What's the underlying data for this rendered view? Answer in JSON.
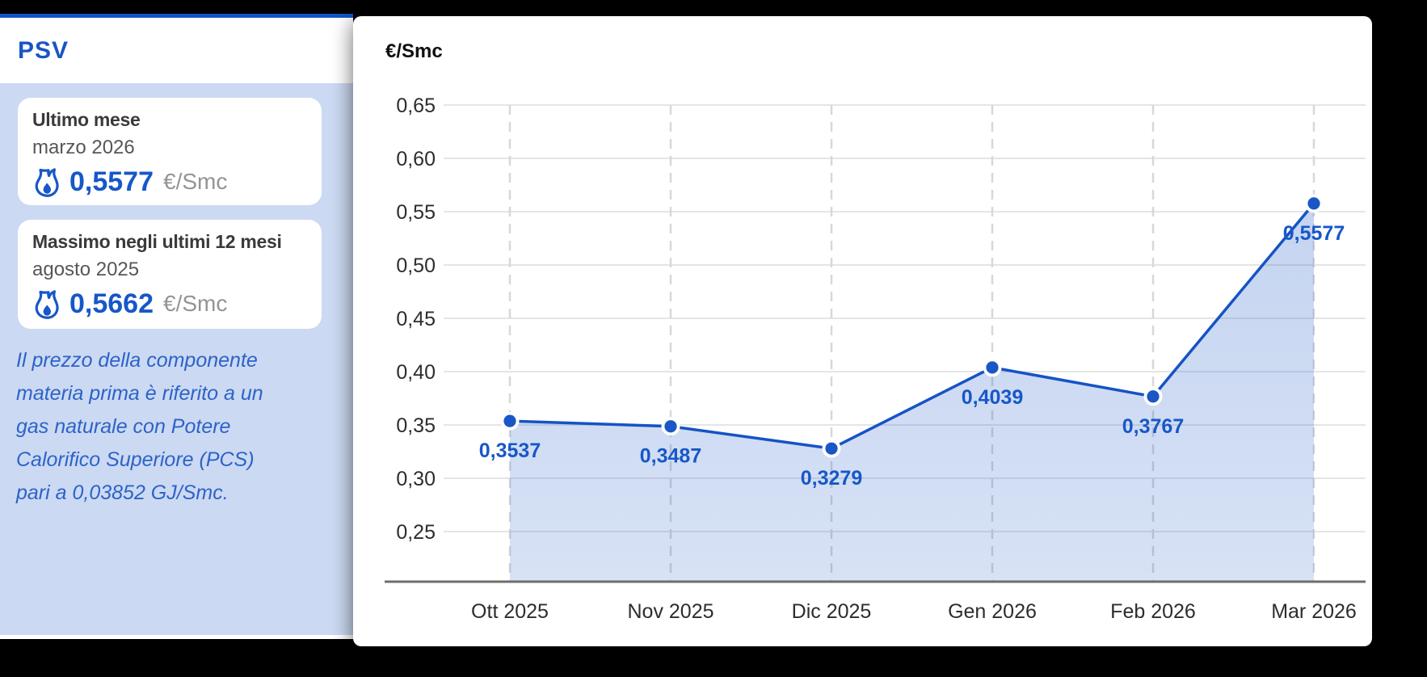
{
  "sidebar": {
    "title": "PSV",
    "cards": [
      {
        "title": "Ultimo mese",
        "date": "marzo 2026",
        "value": "0,5577",
        "unit": "€/Smc"
      },
      {
        "title": "Massimo negli ultimi 12 mesi",
        "date": "agosto 2025",
        "value": "0,5662",
        "unit": "€/Smc"
      }
    ],
    "note": "Il prezzo della componente\nmateria prima è riferito a un\ngas naturale con Potere\nCalorifico Superiore (PCS)\npari a 0,03852 GJ/Smc.",
    "accent_color": "#1757c8",
    "panel_color": "#ccd9f2",
    "top_border_color": "#1353c6"
  },
  "chart_data": {
    "type": "area",
    "title": "€/Smc",
    "categories": [
      "Ott 2025",
      "Nov 2025",
      "Dic 2025",
      "Gen 2026",
      "Feb 2026",
      "Mar 2026"
    ],
    "values": [
      0.3537,
      0.3487,
      0.3279,
      0.4039,
      0.3767,
      0.5577
    ],
    "value_labels": [
      "0,3537",
      "0,3487",
      "0,3279",
      "0,4039",
      "0,3767",
      "0,5577"
    ],
    "ytick_labels": [
      "0,65",
      "0,60",
      "0,55",
      "0,50",
      "0,45",
      "0,40",
      "0,35",
      "0,30",
      "0,25"
    ],
    "ylim": [
      0.203,
      0.65
    ],
    "grid": "horizontal solid, vertical dashed per month",
    "legend": "none",
    "line_color": "#1553c5",
    "point_color": "#1a56c5",
    "fill_color": "#1553c5",
    "xlabel": "",
    "ylabel": "€/Smc"
  }
}
